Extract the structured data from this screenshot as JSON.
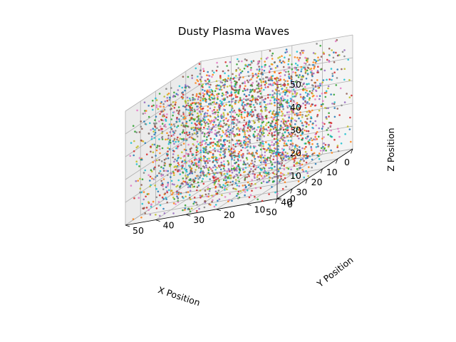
{
  "chart_data": {
    "type": "scatter3d",
    "title": "Dusty Plasma Waves",
    "xlabel": "X Position",
    "ylabel": "Y Position",
    "zlabel": "Z Position",
    "xlim": [
      0,
      50
    ],
    "ylim": [
      0,
      50
    ],
    "zlim": [
      0,
      50
    ],
    "xticks": [
      0,
      10,
      20,
      30,
      40,
      50
    ],
    "yticks": [
      0,
      10,
      20,
      30,
      40,
      50
    ],
    "zticks": [
      0,
      10,
      20,
      30,
      40,
      50
    ],
    "grid": true,
    "point_count": 3000,
    "point_colors": [
      "#1f77b4",
      "#ff7f0e",
      "#2ca02c",
      "#d62728",
      "#9467bd",
      "#8c564b",
      "#e377c2",
      "#7f7f7f",
      "#bcbd22",
      "#17becf"
    ],
    "pane_color": "#f2f2f2",
    "edge_color": "#000000",
    "grid_color": "#b0b0b0"
  }
}
